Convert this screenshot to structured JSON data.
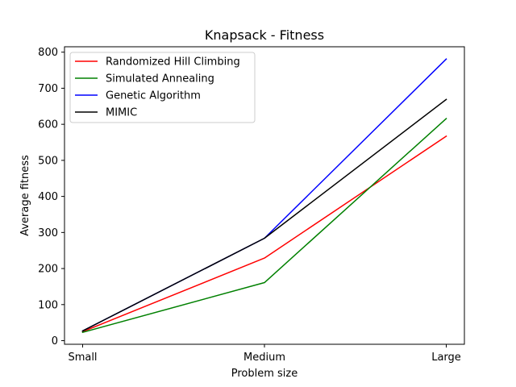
{
  "chart_data": {
    "type": "line",
    "title": "Knapsack - Fitness",
    "xlabel": "Problem size",
    "ylabel": "Average fitness",
    "categories": [
      "Small",
      "Medium",
      "Large"
    ],
    "ylim": [
      -10,
      815
    ],
    "yticks": [
      0,
      100,
      200,
      300,
      400,
      500,
      600,
      700,
      800
    ],
    "grid": false,
    "legend_position": "top-left",
    "series": [
      {
        "name": "Randomized Hill Climbing",
        "color": "#ff0000",
        "values": [
          25,
          229,
          567
        ]
      },
      {
        "name": "Simulated Annealing",
        "color": "#008000",
        "values": [
          23,
          161,
          616
        ]
      },
      {
        "name": "Genetic Algorithm",
        "color": "#0000ff",
        "values": [
          27,
          284,
          781
        ]
      },
      {
        "name": "MIMIC",
        "color": "#000000",
        "values": [
          27,
          284,
          669
        ]
      }
    ]
  }
}
